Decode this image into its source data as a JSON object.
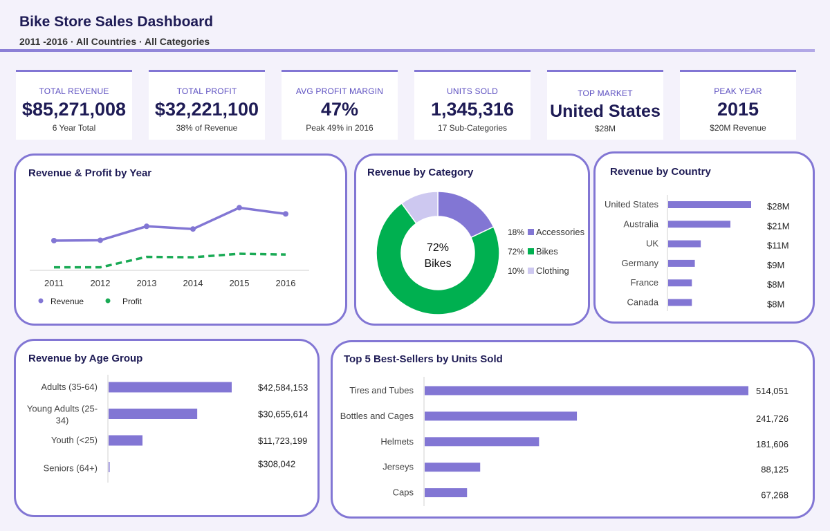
{
  "header": {
    "title": "Bike Store Sales Dashboard",
    "subtitle": "2011 -2016 · All Countries · All Categories"
  },
  "kpis": [
    {
      "label": "TOTAL REVENUE",
      "value": "$85,271,008",
      "sub": "6 Year Total"
    },
    {
      "label": "TOTAL PROFIT",
      "value": "$32,221,100",
      "sub": "38% of Revenue"
    },
    {
      "label": "AVG PROFIT MARGIN",
      "value": "47%",
      "sub": "Peak 49% in 2016"
    },
    {
      "label": "UNITS SOLD",
      "value": "1,345,316",
      "sub": "17 Sub-Categories"
    },
    {
      "label": "TOP MARKET",
      "value": "United States",
      "sub": "$28M"
    },
    {
      "label": "PEAK YEAR",
      "value": "2015",
      "sub": "$20M Revenue"
    }
  ],
  "colors": {
    "accent": "#8276d4",
    "bar": "#8276d4",
    "profit": "#1aaa55",
    "bikes": "#00b050",
    "clothing": "#cdc8f0",
    "title": "#1e1b55"
  },
  "chart_data": [
    {
      "id": "line",
      "type": "line",
      "title": "Revenue & Profit by Year",
      "categories": [
        "2011",
        "2012",
        "2013",
        "2014",
        "2015",
        "2016"
      ],
      "series": [
        {
          "name": "Revenue",
          "values": [
            11.5,
            11.6,
            15.2,
            14.5,
            20.0,
            18.4
          ]
        },
        {
          "name": "Profit",
          "values": [
            4.6,
            4.6,
            7.3,
            7.2,
            8.1,
            7.9
          ]
        }
      ],
      "ylim": [
        0,
        26
      ]
    },
    {
      "id": "donut",
      "type": "pie",
      "title": "Revenue by Category",
      "center_label": [
        "72%",
        "Bikes"
      ],
      "slices": [
        {
          "name": "Accessories",
          "pct_label": "18%",
          "value": 18
        },
        {
          "name": "Bikes",
          "pct_label": "72%",
          "value": 72
        },
        {
          "name": "Clothing",
          "pct_label": "10%",
          "value": 10
        }
      ]
    },
    {
      "id": "country",
      "type": "bar",
      "title": "Revenue by Country",
      "categories": [
        "United States",
        "Australia",
        "UK",
        "Germany",
        "France",
        "Canada"
      ],
      "values": [
        28,
        21,
        11,
        9,
        8,
        8
      ],
      "value_labels": [
        "$28M",
        "$21M",
        "$11M",
        "$9M",
        "$8M",
        "$8M"
      ],
      "xlim": [
        0,
        28
      ]
    },
    {
      "id": "age",
      "type": "bar",
      "title": "Revenue by Age Group",
      "categories": [
        [
          "Adults (35-64)"
        ],
        [
          "Young Adults (25-",
          "34)"
        ],
        [
          "Youth (<25)"
        ],
        [
          "Seniors (64+)"
        ]
      ],
      "values": [
        42584153,
        30655614,
        11723199,
        308042
      ],
      "value_labels": [
        "$42,584,153",
        "$30,655,614",
        "$11,723,199",
        "$308,042"
      ],
      "xlim": [
        0,
        42584153
      ]
    },
    {
      "id": "sellers",
      "type": "bar",
      "title": "Top 5 Best-Sellers by Units Sold",
      "categories": [
        "Tires and Tubes",
        "Bottles and Cages",
        "Helmets",
        "Jerseys",
        "Caps"
      ],
      "values": [
        514051,
        241726,
        181606,
        88125,
        67268
      ],
      "value_labels": [
        "514,051",
        "241,726",
        "181,606",
        "88,125",
        "67,268"
      ],
      "xlim": [
        0,
        514051
      ]
    }
  ]
}
